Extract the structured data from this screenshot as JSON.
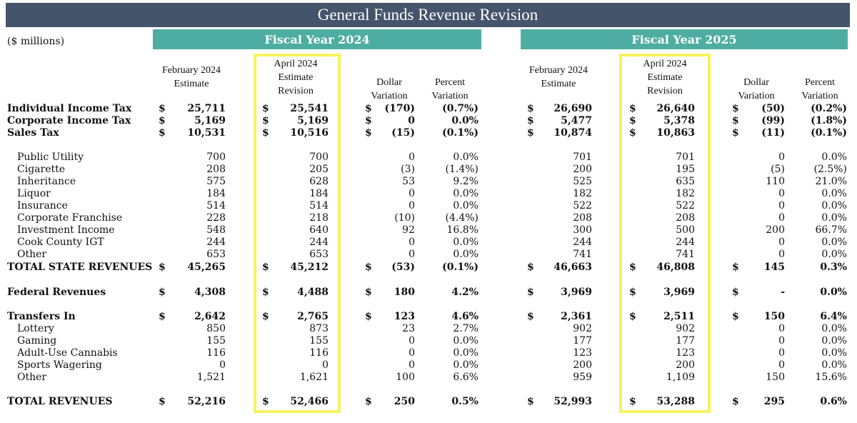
{
  "title": "General Funds Revenue Revision",
  "units": "($ millions)",
  "fiscal_years": [
    {
      "label": "Fiscal Year 2024"
    },
    {
      "label": "Fiscal Year 2025"
    }
  ],
  "column_headers": {
    "feb_estimate": [
      "February 2024",
      "Estimate"
    ],
    "april_revision": [
      "April 2024",
      "Estimate",
      "Revision"
    ],
    "dollar_variation": [
      "Dollar",
      "Variation"
    ],
    "percent_variation": [
      "Percent",
      "Variation"
    ]
  },
  "highlight_color": "#f7f260",
  "band_color": "#4eada2",
  "title_bar_color": "#44546a",
  "rows": [
    {
      "label": "Individual Income Tax",
      "style": "bold",
      "cells": [
        "$",
        "25,711",
        "$",
        "25,541",
        "$",
        "(170)",
        "(0.7%)",
        "$",
        "26,690",
        "$",
        "26,640",
        "$",
        "(50)",
        "(0.2%)"
      ]
    },
    {
      "label": "Corporate Income Tax",
      "style": "bold",
      "cells": [
        "$",
        "5,169",
        "$",
        "5,169",
        "$",
        "0",
        "0.0%",
        "$",
        "5,477",
        "$",
        "5,378",
        "$",
        "(99)",
        "(1.8%)"
      ]
    },
    {
      "label": "Sales Tax",
      "style": "bold",
      "cells": [
        "$",
        "10,531",
        "$",
        "10,516",
        "$",
        "(15)",
        "(0.1%)",
        "$",
        "10,874",
        "$",
        "10,863",
        "$",
        "(11)",
        "(0.1%)"
      ]
    },
    {
      "label": "Public Utility",
      "style": "sub",
      "cells": [
        "",
        "700",
        "",
        "700",
        "",
        "0",
        "0.0%",
        "",
        "701",
        "",
        "701",
        "",
        "0",
        "0.0%"
      ]
    },
    {
      "label": "Cigarette",
      "style": "sub",
      "cells": [
        "",
        "208",
        "",
        "205",
        "",
        "(3)",
        "(1.4%)",
        "",
        "200",
        "",
        "195",
        "",
        "(5)",
        "(2.5%)"
      ]
    },
    {
      "label": "Inheritance",
      "style": "sub",
      "cells": [
        "",
        "575",
        "",
        "628",
        "",
        "53",
        "9.2%",
        "",
        "525",
        "",
        "635",
        "",
        "110",
        "21.0%"
      ]
    },
    {
      "label": "Liquor",
      "style": "sub",
      "cells": [
        "",
        "184",
        "",
        "184",
        "",
        "0",
        "0.0%",
        "",
        "182",
        "",
        "182",
        "",
        "0",
        "0.0%"
      ]
    },
    {
      "label": "Insurance",
      "style": "sub",
      "cells": [
        "",
        "514",
        "",
        "514",
        "",
        "0",
        "0.0%",
        "",
        "522",
        "",
        "522",
        "",
        "0",
        "0.0%"
      ]
    },
    {
      "label": "Corporate Franchise",
      "style": "sub",
      "cells": [
        "",
        "228",
        "",
        "218",
        "",
        "(10)",
        "(4.4%)",
        "",
        "208",
        "",
        "208",
        "",
        "0",
        "0.0%"
      ]
    },
    {
      "label": "Investment Income",
      "style": "sub",
      "cells": [
        "",
        "548",
        "",
        "640",
        "",
        "92",
        "16.8%",
        "",
        "300",
        "",
        "500",
        "",
        "200",
        "66.7%"
      ]
    },
    {
      "label": "Cook County IGT",
      "style": "sub",
      "cells": [
        "",
        "244",
        "",
        "244",
        "",
        "0",
        "0.0%",
        "",
        "244",
        "",
        "244",
        "",
        "0",
        "0.0%"
      ]
    },
    {
      "label": "Other",
      "style": "sub",
      "cells": [
        "",
        "653",
        "",
        "653",
        "",
        "0",
        "0.0%",
        "",
        "741",
        "",
        "741",
        "",
        "0",
        "0.0%"
      ]
    },
    {
      "label": "TOTAL STATE REVENUES",
      "style": "bold",
      "cells": [
        "$",
        "45,265",
        "$",
        "45,212",
        "$",
        "(53)",
        "(0.1%)",
        "$",
        "46,663",
        "$",
        "46,808",
        "$",
        "145",
        "0.3%"
      ]
    },
    {
      "label": "Federal Revenues",
      "style": "bold",
      "cells": [
        "$",
        "4,308",
        "$",
        "4,488",
        "$",
        "180",
        "4.2%",
        "$",
        "3,969",
        "$",
        "3,969",
        "$",
        "-",
        "0.0%"
      ]
    },
    {
      "label": "Transfers In",
      "style": "bold",
      "cells": [
        "$",
        "2,642",
        "$",
        "2,765",
        "$",
        "123",
        "4.6%",
        "$",
        "2,361",
        "$",
        "2,511",
        "$",
        "150",
        "6.4%"
      ]
    },
    {
      "label": "Lottery",
      "style": "sub",
      "cells": [
        "",
        "850",
        "",
        "873",
        "",
        "23",
        "2.7%",
        "",
        "902",
        "",
        "902",
        "",
        "0",
        "0.0%"
      ]
    },
    {
      "label": "Gaming",
      "style": "sub",
      "cells": [
        "",
        "155",
        "",
        "155",
        "",
        "0",
        "0.0%",
        "",
        "177",
        "",
        "177",
        "",
        "0",
        "0.0%"
      ]
    },
    {
      "label": "Adult-Use Cannabis",
      "style": "sub",
      "cells": [
        "",
        "116",
        "",
        "116",
        "",
        "0",
        "0.0%",
        "",
        "123",
        "",
        "123",
        "",
        "0",
        "0.0%"
      ]
    },
    {
      "label": "Sports Wagering",
      "style": "sub",
      "cells": [
        "",
        "0",
        "",
        "0",
        "",
        "0",
        "0.0%",
        "",
        "200",
        "",
        "200",
        "",
        "0",
        "0.0%"
      ]
    },
    {
      "label": "Other",
      "style": "sub",
      "cells": [
        "",
        "1,521",
        "",
        "1,621",
        "",
        "100",
        "6.6%",
        "",
        "959",
        "",
        "1,109",
        "",
        "150",
        "15.6%"
      ]
    },
    {
      "label": "TOTAL REVENUES",
      "style": "bold",
      "cells": [
        "$",
        "52,216",
        "$",
        "52,466",
        "$",
        "250",
        "0.5%",
        "$",
        "52,993",
        "$",
        "53,288",
        "$",
        "295",
        "0.6%"
      ]
    }
  ]
}
